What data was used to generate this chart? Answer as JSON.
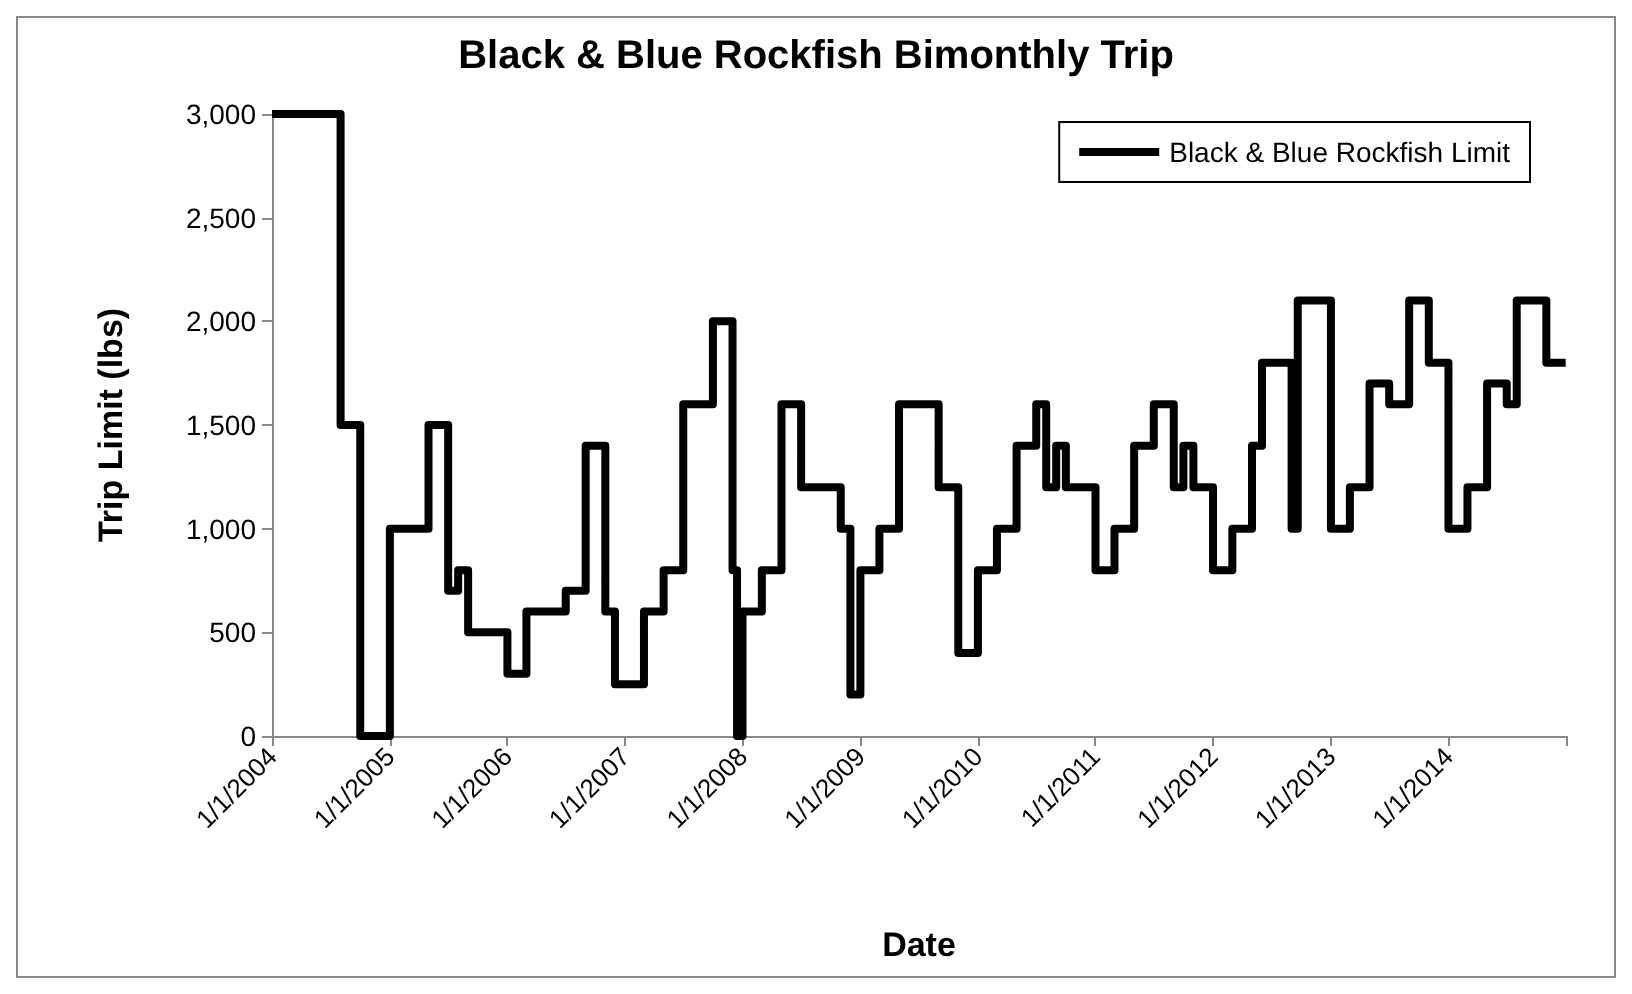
{
  "chart_data": {
    "type": "step",
    "title": "Black & Blue Rockfish Bimonthly Trip",
    "xlabel": "Date",
    "ylabel": "Trip Limit (lbs)",
    "x": [
      "2004-01-01",
      "2004-08-01",
      "2004-10-01",
      "2005-01-01",
      "2005-05-01",
      "2005-07-01",
      "2005-08-01",
      "2005-09-01",
      "2006-01-01",
      "2006-03-01",
      "2006-07-01",
      "2006-09-01",
      "2006-11-01",
      "2006-12-01",
      "2007-03-01",
      "2007-05-01",
      "2007-07-01",
      "2007-10-01",
      "2007-12-01",
      "2007-12-15",
      "2008-01-01",
      "2008-03-01",
      "2008-05-01",
      "2008-07-01",
      "2008-11-01",
      "2008-12-01",
      "2009-01-01",
      "2009-03-01",
      "2009-05-01",
      "2009-09-01",
      "2009-11-01",
      "2010-01-01",
      "2010-03-01",
      "2010-05-01",
      "2010-07-01",
      "2010-08-01",
      "2010-09-01",
      "2010-10-01",
      "2011-01-01",
      "2011-03-01",
      "2011-05-01",
      "2011-07-01",
      "2011-09-01",
      "2011-10-01",
      "2011-11-01",
      "2012-01-01",
      "2012-03-01",
      "2012-05-01",
      "2012-06-01",
      "2012-09-01",
      "2012-09-20",
      "2013-01-01",
      "2013-03-01",
      "2013-05-01",
      "2013-07-01",
      "2013-09-01",
      "2013-11-01",
      "2014-01-01",
      "2014-03-01",
      "2014-05-01",
      "2014-07-01",
      "2014-08-01",
      "2014-11-01",
      "2014-12-31"
    ],
    "series": [
      {
        "name": "Black & Blue Rockfish Limit",
        "color": "#000000",
        "values": [
          3000,
          1500,
          0,
          1000,
          1500,
          700,
          800,
          500,
          300,
          600,
          700,
          1400,
          600,
          250,
          600,
          800,
          1600,
          2000,
          800,
          0,
          600,
          800,
          1600,
          1200,
          1000,
          200,
          800,
          1000,
          1600,
          1200,
          400,
          800,
          1000,
          1400,
          1600,
          1200,
          1400,
          1200,
          800,
          1000,
          1400,
          1600,
          1200,
          1400,
          1200,
          800,
          1000,
          1400,
          1800,
          1000,
          2100,
          1000,
          1200,
          1700,
          1600,
          2100,
          1800,
          1000,
          1200,
          1700,
          1600,
          2100,
          1800,
          1800
        ]
      }
    ],
    "xlim": [
      "2004-01-01",
      "2015-01-01"
    ],
    "xticks": [
      {
        "value": "2004-01-01",
        "label": "1/1/2004"
      },
      {
        "value": "2005-01-01",
        "label": "1/1/2005"
      },
      {
        "value": "2006-01-01",
        "label": "1/1/2006"
      },
      {
        "value": "2007-01-01",
        "label": "1/1/2007"
      },
      {
        "value": "2008-01-01",
        "label": "1/1/2008"
      },
      {
        "value": "2009-01-01",
        "label": "1/1/2009"
      },
      {
        "value": "2010-01-01",
        "label": "1/1/2010"
      },
      {
        "value": "2011-01-01",
        "label": "1/1/2011"
      },
      {
        "value": "2012-01-01",
        "label": "1/1/2012"
      },
      {
        "value": "2013-01-01",
        "label": "1/1/2013"
      },
      {
        "value": "2014-01-01",
        "label": "1/1/2014"
      },
      {
        "value": "2015-01-01",
        "label": null
      }
    ],
    "ylim": [
      0,
      3000
    ],
    "yticks": [
      {
        "value": 0,
        "label": "0"
      },
      {
        "value": 500,
        "label": "500"
      },
      {
        "value": 1000,
        "label": "1,000"
      },
      {
        "value": 1500,
        "label": "1,500"
      },
      {
        "value": 2000,
        "label": "2,000"
      },
      {
        "value": 2500,
        "label": "2,500"
      },
      {
        "value": 3000,
        "label": "3,000"
      }
    ],
    "legend": "top right",
    "marker": "none",
    "line_style": "solid"
  }
}
